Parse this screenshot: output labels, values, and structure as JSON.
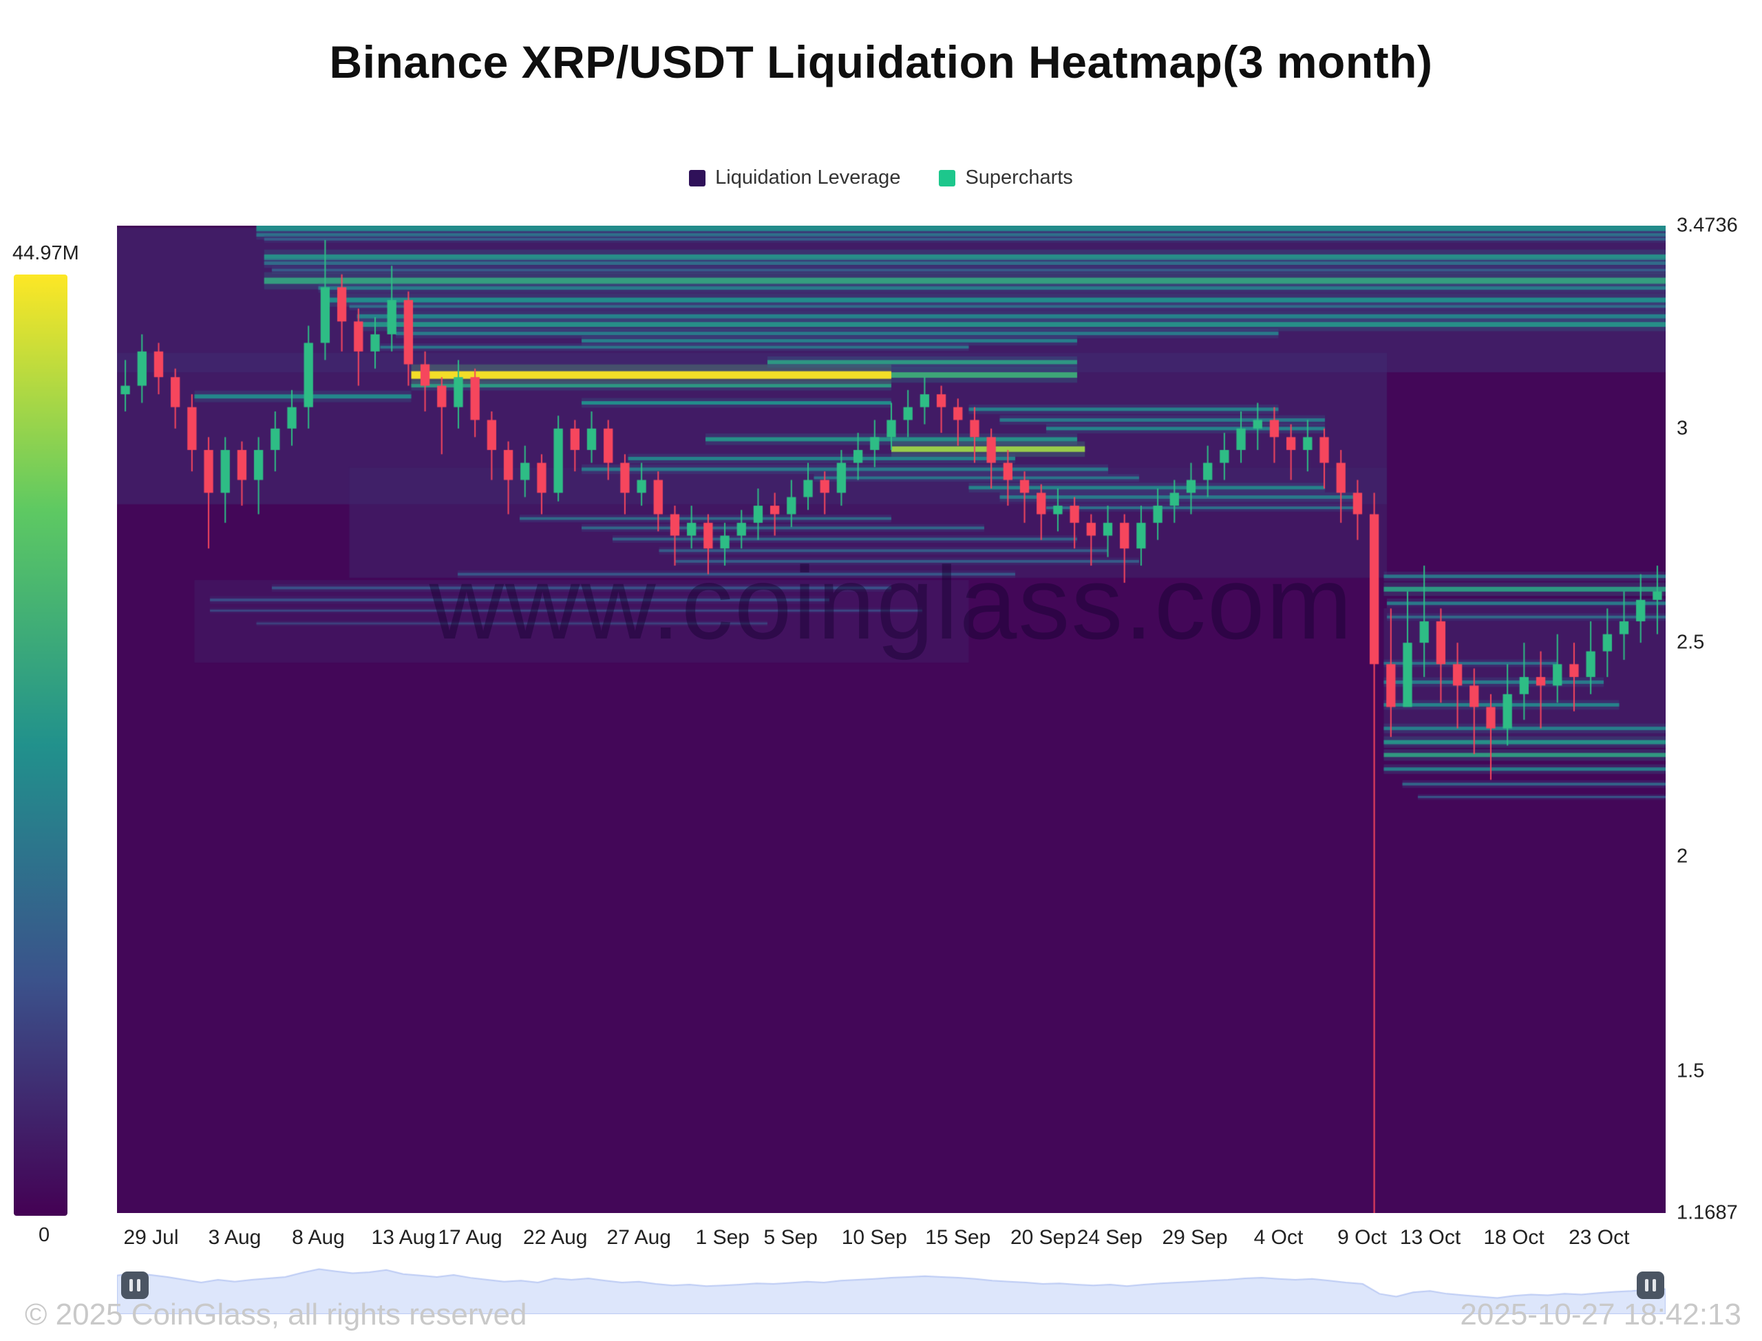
{
  "title": "Binance XRP/USDT Liquidation Heatmap(3 month)",
  "legend": {
    "items": [
      {
        "label": "Liquidation Leverage",
        "color": "#2f1159"
      },
      {
        "label": "Supercharts",
        "color": "#1dc78c"
      }
    ]
  },
  "colorbar": {
    "max_label": "44.97M",
    "min_label": "0",
    "stops": [
      "#440154",
      "#3b528b",
      "#21918c",
      "#5ec962",
      "#fde725"
    ]
  },
  "watermark": "www.coinglass.com",
  "footer": {
    "copyright": "© 2025 CoinGlass, all rights reserved",
    "timestamp": "2025-10-27 18:42:13"
  },
  "navigator": {
    "fill": "#dde6fb",
    "stroke": "#bccbf4"
  },
  "chart_data": {
    "type": "heatmap",
    "title": "Binance XRP/USDT Liquidation Heatmap(3 month)",
    "legend_entries": [
      "Liquidation Leverage",
      "Supercharts"
    ],
    "colorbar_max": 44970000,
    "colorbar_max_label": "44.97M",
    "colorbar_min_label": "0",
    "y_axis": {
      "min": 1.1687,
      "max": 3.4736,
      "ticks": [
        {
          "v": 3.4736,
          "label": "3.4736"
        },
        {
          "v": 3.0,
          "label": "3"
        },
        {
          "v": 2.5,
          "label": "2.5"
        },
        {
          "v": 2.0,
          "label": "2"
        },
        {
          "v": 1.5,
          "label": "1.5"
        },
        {
          "v": 1.1687,
          "label": "1.1687"
        }
      ]
    },
    "x_axis": {
      "ticks": [
        {
          "f": 0.022,
          "label": "29 Jul"
        },
        {
          "f": 0.076,
          "label": "3 Aug"
        },
        {
          "f": 0.13,
          "label": "8 Aug"
        },
        {
          "f": 0.185,
          "label": "13 Aug"
        },
        {
          "f": 0.228,
          "label": "17 Aug"
        },
        {
          "f": 0.283,
          "label": "22 Aug"
        },
        {
          "f": 0.337,
          "label": "27 Aug"
        },
        {
          "f": 0.391,
          "label": "1 Sep"
        },
        {
          "f": 0.435,
          "label": "5 Sep"
        },
        {
          "f": 0.489,
          "label": "10 Sep"
        },
        {
          "f": 0.543,
          "label": "15 Sep"
        },
        {
          "f": 0.598,
          "label": "20 Sep"
        },
        {
          "f": 0.641,
          "label": "24 Sep"
        },
        {
          "f": 0.696,
          "label": "29 Sep"
        },
        {
          "f": 0.75,
          "label": "4 Oct"
        },
        {
          "f": 0.804,
          "label": "9 Oct"
        },
        {
          "f": 0.848,
          "label": "13 Oct"
        },
        {
          "f": 0.902,
          "label": "18 Oct"
        },
        {
          "f": 0.957,
          "label": "23 Oct"
        }
      ]
    },
    "haze": [
      [
        3.3,
        0.0,
        1.0,
        0.14,
        210
      ],
      [
        3.0,
        0.0,
        0.82,
        0.13,
        220
      ],
      [
        2.78,
        0.15,
        0.82,
        0.11,
        160
      ],
      [
        2.55,
        0.05,
        0.55,
        0.08,
        120
      ],
      [
        2.42,
        0.818,
        1.0,
        0.12,
        200
      ]
    ],
    "bands": [
      [
        3.468,
        0.09,
        1.0,
        0.5,
        9
      ],
      [
        3.452,
        0.09,
        1.0,
        0.38,
        5
      ],
      [
        3.442,
        0.095,
        1.0,
        0.3,
        4
      ],
      [
        3.4,
        0.095,
        1.0,
        0.52,
        8
      ],
      [
        3.386,
        0.095,
        1.0,
        0.36,
        5
      ],
      [
        3.37,
        0.1,
        1.0,
        0.3,
        4
      ],
      [
        3.345,
        0.095,
        1.0,
        0.58,
        9
      ],
      [
        3.328,
        0.13,
        1.0,
        0.42,
        5
      ],
      [
        3.3,
        0.135,
        1.0,
        0.5,
        7
      ],
      [
        3.285,
        0.15,
        1.0,
        0.36,
        4
      ],
      [
        3.262,
        0.155,
        1.0,
        0.46,
        6
      ],
      [
        3.243,
        0.155,
        1.0,
        0.52,
        7
      ],
      [
        3.222,
        0.18,
        0.75,
        0.42,
        5
      ],
      [
        3.205,
        0.3,
        0.62,
        0.45,
        5
      ],
      [
        3.19,
        0.17,
        0.55,
        0.4,
        4
      ],
      [
        3.125,
        0.19,
        0.5,
        1.0,
        11
      ],
      [
        3.125,
        0.5,
        0.62,
        0.62,
        8
      ],
      [
        3.155,
        0.42,
        0.62,
        0.55,
        6
      ],
      [
        3.1,
        0.19,
        0.5,
        0.55,
        5
      ],
      [
        3.075,
        0.05,
        0.19,
        0.48,
        6
      ],
      [
        3.06,
        0.3,
        0.5,
        0.5,
        5
      ],
      [
        3.045,
        0.55,
        0.75,
        0.45,
        5
      ],
      [
        3.02,
        0.57,
        0.78,
        0.42,
        5
      ],
      [
        3.0,
        0.6,
        0.78,
        0.46,
        5
      ],
      [
        2.975,
        0.38,
        0.62,
        0.52,
        6
      ],
      [
        2.952,
        0.5,
        0.625,
        0.85,
        8
      ],
      [
        2.93,
        0.33,
        0.58,
        0.46,
        5
      ],
      [
        2.905,
        0.3,
        0.64,
        0.42,
        5
      ],
      [
        2.885,
        0.45,
        0.66,
        0.4,
        4
      ],
      [
        2.862,
        0.55,
        0.78,
        0.46,
        5
      ],
      [
        2.84,
        0.57,
        0.8,
        0.42,
        5
      ],
      [
        2.815,
        0.6,
        0.8,
        0.38,
        4
      ],
      [
        2.79,
        0.26,
        0.5,
        0.36,
        4
      ],
      [
        2.768,
        0.3,
        0.56,
        0.34,
        4
      ],
      [
        2.742,
        0.32,
        0.62,
        0.33,
        4
      ],
      [
        2.715,
        0.35,
        0.64,
        0.3,
        4
      ],
      [
        2.69,
        0.36,
        0.66,
        0.3,
        4
      ],
      [
        2.66,
        0.22,
        0.58,
        0.28,
        4
      ],
      [
        2.628,
        0.1,
        0.5,
        0.26,
        4
      ],
      [
        2.6,
        0.06,
        0.46,
        0.24,
        4
      ],
      [
        2.575,
        0.06,
        0.52,
        0.22,
        3
      ],
      [
        2.545,
        0.09,
        0.42,
        0.2,
        3
      ],
      [
        2.655,
        0.818,
        1.0,
        0.4,
        5
      ],
      [
        2.625,
        0.818,
        1.0,
        0.55,
        7
      ],
      [
        2.592,
        0.82,
        1.0,
        0.42,
        5
      ],
      [
        2.56,
        0.82,
        1.0,
        0.35,
        4
      ],
      [
        2.452,
        0.818,
        0.93,
        0.38,
        4
      ],
      [
        2.408,
        0.818,
        0.96,
        0.42,
        5
      ],
      [
        2.355,
        0.818,
        0.97,
        0.46,
        5
      ],
      [
        2.3,
        0.818,
        1.0,
        0.44,
        5
      ],
      [
        2.268,
        0.818,
        1.0,
        0.52,
        6
      ],
      [
        2.238,
        0.818,
        1.0,
        0.56,
        6
      ],
      [
        2.205,
        0.818,
        1.0,
        0.44,
        5
      ],
      [
        2.17,
        0.83,
        1.0,
        0.34,
        4
      ],
      [
        2.14,
        0.84,
        1.0,
        0.28,
        3
      ]
    ],
    "candles": {
      "up_color": "#2ebd85",
      "down_color": "#f6465d",
      "first_open": 3.08,
      "hlc": [
        [
          3.16,
          3.04,
          3.1
        ],
        [
          3.22,
          3.06,
          3.18
        ],
        [
          3.2,
          3.08,
          3.12
        ],
        [
          3.14,
          3.0,
          3.05
        ],
        [
          3.08,
          2.9,
          2.95
        ],
        [
          2.98,
          2.72,
          2.85
        ],
        [
          2.98,
          2.78,
          2.95
        ],
        [
          2.97,
          2.82,
          2.88
        ],
        [
          2.98,
          2.8,
          2.95
        ],
        [
          3.04,
          2.9,
          3.0
        ],
        [
          3.09,
          2.96,
          3.05
        ],
        [
          3.24,
          3.0,
          3.2
        ],
        [
          3.44,
          3.16,
          3.33
        ],
        [
          3.36,
          3.18,
          3.25
        ],
        [
          3.28,
          3.1,
          3.18
        ],
        [
          3.26,
          3.14,
          3.22
        ],
        [
          3.38,
          3.18,
          3.3
        ],
        [
          3.32,
          3.1,
          3.15
        ],
        [
          3.18,
          3.04,
          3.1
        ],
        [
          3.12,
          2.94,
          3.05
        ],
        [
          3.16,
          3.0,
          3.12
        ],
        [
          3.14,
          2.98,
          3.02
        ],
        [
          3.04,
          2.88,
          2.95
        ],
        [
          2.97,
          2.8,
          2.88
        ],
        [
          2.96,
          2.84,
          2.92
        ],
        [
          2.94,
          2.8,
          2.85
        ],
        [
          3.03,
          2.83,
          3.0
        ],
        [
          3.02,
          2.9,
          2.95
        ],
        [
          3.04,
          2.92,
          3.0
        ],
        [
          3.02,
          2.88,
          2.92
        ],
        [
          2.94,
          2.8,
          2.85
        ],
        [
          2.92,
          2.82,
          2.88
        ],
        [
          2.9,
          2.76,
          2.8
        ],
        [
          2.82,
          2.68,
          2.75
        ],
        [
          2.82,
          2.72,
          2.78
        ],
        [
          2.8,
          2.66,
          2.72
        ],
        [
          2.78,
          2.68,
          2.75
        ],
        [
          2.81,
          2.72,
          2.78
        ],
        [
          2.86,
          2.74,
          2.82
        ],
        [
          2.85,
          2.75,
          2.8
        ],
        [
          2.88,
          2.77,
          2.84
        ],
        [
          2.92,
          2.81,
          2.88
        ],
        [
          2.9,
          2.8,
          2.85
        ],
        [
          2.95,
          2.82,
          2.92
        ],
        [
          2.99,
          2.88,
          2.95
        ],
        [
          3.02,
          2.91,
          2.98
        ],
        [
          3.06,
          2.95,
          3.02
        ],
        [
          3.09,
          2.98,
          3.05
        ],
        [
          3.12,
          3.01,
          3.08
        ],
        [
          3.1,
          2.99,
          3.05
        ],
        [
          3.07,
          2.96,
          3.02
        ],
        [
          3.05,
          2.92,
          2.98
        ],
        [
          3.0,
          2.86,
          2.92
        ],
        [
          2.95,
          2.82,
          2.88
        ],
        [
          2.9,
          2.78,
          2.85
        ],
        [
          2.87,
          2.74,
          2.8
        ],
        [
          2.86,
          2.76,
          2.82
        ],
        [
          2.84,
          2.72,
          2.78
        ],
        [
          2.8,
          2.68,
          2.75
        ],
        [
          2.82,
          2.7,
          2.78
        ],
        [
          2.8,
          2.64,
          2.72
        ],
        [
          2.82,
          2.68,
          2.78
        ],
        [
          2.86,
          2.74,
          2.82
        ],
        [
          2.88,
          2.78,
          2.85
        ],
        [
          2.92,
          2.8,
          2.88
        ],
        [
          2.96,
          2.84,
          2.92
        ],
        [
          2.99,
          2.88,
          2.95
        ],
        [
          3.04,
          2.92,
          3.0
        ],
        [
          3.06,
          2.95,
          3.02
        ],
        [
          3.05,
          2.92,
          2.98
        ],
        [
          3.01,
          2.88,
          2.95
        ],
        [
          3.02,
          2.9,
          2.98
        ],
        [
          3.0,
          2.86,
          2.92
        ],
        [
          2.95,
          2.78,
          2.85
        ],
        [
          2.88,
          2.74,
          2.8
        ],
        [
          2.85,
          1.1687,
          2.45
        ],
        [
          2.58,
          2.28,
          2.35
        ],
        [
          2.62,
          2.38,
          2.5
        ],
        [
          2.68,
          2.42,
          2.55
        ],
        [
          2.58,
          2.36,
          2.45
        ],
        [
          2.5,
          2.3,
          2.4
        ],
        [
          2.44,
          2.24,
          2.35
        ],
        [
          2.38,
          2.18,
          2.3
        ],
        [
          2.45,
          2.26,
          2.38
        ],
        [
          2.5,
          2.32,
          2.42
        ],
        [
          2.48,
          2.3,
          2.4
        ],
        [
          2.52,
          2.36,
          2.45
        ],
        [
          2.5,
          2.34,
          2.42
        ],
        [
          2.55,
          2.38,
          2.48
        ],
        [
          2.58,
          2.42,
          2.52
        ],
        [
          2.62,
          2.46,
          2.55
        ],
        [
          2.66,
          2.5,
          2.6
        ],
        [
          2.68,
          2.52,
          2.62
        ]
      ]
    }
  }
}
